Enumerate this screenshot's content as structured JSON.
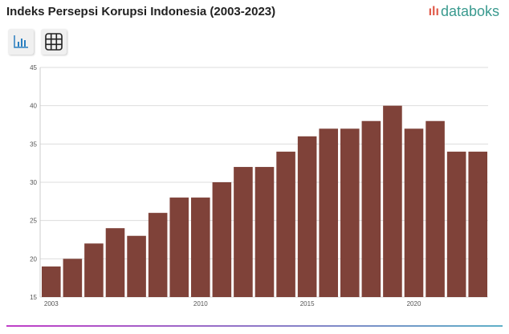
{
  "header": {
    "title": "Indeks Persepsi Korupsi Indonesia (2003-2023)",
    "logo": "databoks"
  },
  "toolbar": {
    "chart_icon": "bar-chart-icon",
    "table_icon": "table-grid-icon"
  },
  "colors": {
    "bar": "#7f4239",
    "logo": "#3a9a8f",
    "logo_mark": "#e05a4a"
  },
  "chart_data": {
    "type": "bar",
    "title": "Indeks Persepsi Korupsi Indonesia (2003-2023)",
    "categories": [
      "2003",
      "2004",
      "2005",
      "2006",
      "2007",
      "2008",
      "2009",
      "2010",
      "2011",
      "2012",
      "2013",
      "2014",
      "2015",
      "2016",
      "2017",
      "2018",
      "2019",
      "2020",
      "2021",
      "2022",
      "2023"
    ],
    "values": [
      19,
      20,
      22,
      24,
      23,
      26,
      28,
      28,
      30,
      32,
      32,
      34,
      36,
      37,
      37,
      38,
      40,
      37,
      38,
      34,
      34
    ],
    "x_tick_labels": [
      "2003",
      "2010",
      "2015",
      "2020"
    ],
    "y_ticks": [
      15,
      20,
      25,
      30,
      35,
      40,
      45
    ],
    "ylim": [
      15,
      45
    ],
    "grid": true,
    "xlabel": "",
    "ylabel": ""
  }
}
